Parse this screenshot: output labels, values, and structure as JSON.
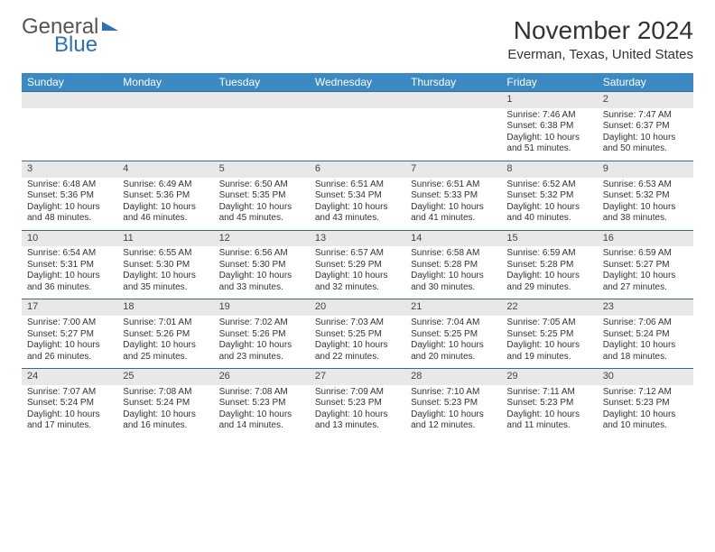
{
  "logo": {
    "general": "General",
    "blue": "Blue"
  },
  "title": "November 2024",
  "location": "Everman, Texas, United States",
  "day_headers": [
    "Sunday",
    "Monday",
    "Tuesday",
    "Wednesday",
    "Thursday",
    "Friday",
    "Saturday"
  ],
  "colors": {
    "header_bg": "#3b8ac4",
    "header_text": "#ffffff",
    "daynum_bg": "#e8e8e8",
    "border": "#3b6a8f",
    "logo_blue": "#2d72b8"
  },
  "weeks": [
    [
      {
        "n": "",
        "t": ""
      },
      {
        "n": "",
        "t": ""
      },
      {
        "n": "",
        "t": ""
      },
      {
        "n": "",
        "t": ""
      },
      {
        "n": "",
        "t": ""
      },
      {
        "n": "1",
        "t": "Sunrise: 7:46 AM\nSunset: 6:38 PM\nDaylight: 10 hours and 51 minutes."
      },
      {
        "n": "2",
        "t": "Sunrise: 7:47 AM\nSunset: 6:37 PM\nDaylight: 10 hours and 50 minutes."
      }
    ],
    [
      {
        "n": "3",
        "t": "Sunrise: 6:48 AM\nSunset: 5:36 PM\nDaylight: 10 hours and 48 minutes."
      },
      {
        "n": "4",
        "t": "Sunrise: 6:49 AM\nSunset: 5:36 PM\nDaylight: 10 hours and 46 minutes."
      },
      {
        "n": "5",
        "t": "Sunrise: 6:50 AM\nSunset: 5:35 PM\nDaylight: 10 hours and 45 minutes."
      },
      {
        "n": "6",
        "t": "Sunrise: 6:51 AM\nSunset: 5:34 PM\nDaylight: 10 hours and 43 minutes."
      },
      {
        "n": "7",
        "t": "Sunrise: 6:51 AM\nSunset: 5:33 PM\nDaylight: 10 hours and 41 minutes."
      },
      {
        "n": "8",
        "t": "Sunrise: 6:52 AM\nSunset: 5:32 PM\nDaylight: 10 hours and 40 minutes."
      },
      {
        "n": "9",
        "t": "Sunrise: 6:53 AM\nSunset: 5:32 PM\nDaylight: 10 hours and 38 minutes."
      }
    ],
    [
      {
        "n": "10",
        "t": "Sunrise: 6:54 AM\nSunset: 5:31 PM\nDaylight: 10 hours and 36 minutes."
      },
      {
        "n": "11",
        "t": "Sunrise: 6:55 AM\nSunset: 5:30 PM\nDaylight: 10 hours and 35 minutes."
      },
      {
        "n": "12",
        "t": "Sunrise: 6:56 AM\nSunset: 5:30 PM\nDaylight: 10 hours and 33 minutes."
      },
      {
        "n": "13",
        "t": "Sunrise: 6:57 AM\nSunset: 5:29 PM\nDaylight: 10 hours and 32 minutes."
      },
      {
        "n": "14",
        "t": "Sunrise: 6:58 AM\nSunset: 5:28 PM\nDaylight: 10 hours and 30 minutes."
      },
      {
        "n": "15",
        "t": "Sunrise: 6:59 AM\nSunset: 5:28 PM\nDaylight: 10 hours and 29 minutes."
      },
      {
        "n": "16",
        "t": "Sunrise: 6:59 AM\nSunset: 5:27 PM\nDaylight: 10 hours and 27 minutes."
      }
    ],
    [
      {
        "n": "17",
        "t": "Sunrise: 7:00 AM\nSunset: 5:27 PM\nDaylight: 10 hours and 26 minutes."
      },
      {
        "n": "18",
        "t": "Sunrise: 7:01 AM\nSunset: 5:26 PM\nDaylight: 10 hours and 25 minutes."
      },
      {
        "n": "19",
        "t": "Sunrise: 7:02 AM\nSunset: 5:26 PM\nDaylight: 10 hours and 23 minutes."
      },
      {
        "n": "20",
        "t": "Sunrise: 7:03 AM\nSunset: 5:25 PM\nDaylight: 10 hours and 22 minutes."
      },
      {
        "n": "21",
        "t": "Sunrise: 7:04 AM\nSunset: 5:25 PM\nDaylight: 10 hours and 20 minutes."
      },
      {
        "n": "22",
        "t": "Sunrise: 7:05 AM\nSunset: 5:25 PM\nDaylight: 10 hours and 19 minutes."
      },
      {
        "n": "23",
        "t": "Sunrise: 7:06 AM\nSunset: 5:24 PM\nDaylight: 10 hours and 18 minutes."
      }
    ],
    [
      {
        "n": "24",
        "t": "Sunrise: 7:07 AM\nSunset: 5:24 PM\nDaylight: 10 hours and 17 minutes."
      },
      {
        "n": "25",
        "t": "Sunrise: 7:08 AM\nSunset: 5:24 PM\nDaylight: 10 hours and 16 minutes."
      },
      {
        "n": "26",
        "t": "Sunrise: 7:08 AM\nSunset: 5:23 PM\nDaylight: 10 hours and 14 minutes."
      },
      {
        "n": "27",
        "t": "Sunrise: 7:09 AM\nSunset: 5:23 PM\nDaylight: 10 hours and 13 minutes."
      },
      {
        "n": "28",
        "t": "Sunrise: 7:10 AM\nSunset: 5:23 PM\nDaylight: 10 hours and 12 minutes."
      },
      {
        "n": "29",
        "t": "Sunrise: 7:11 AM\nSunset: 5:23 PM\nDaylight: 10 hours and 11 minutes."
      },
      {
        "n": "30",
        "t": "Sunrise: 7:12 AM\nSunset: 5:23 PM\nDaylight: 10 hours and 10 minutes."
      }
    ]
  ]
}
